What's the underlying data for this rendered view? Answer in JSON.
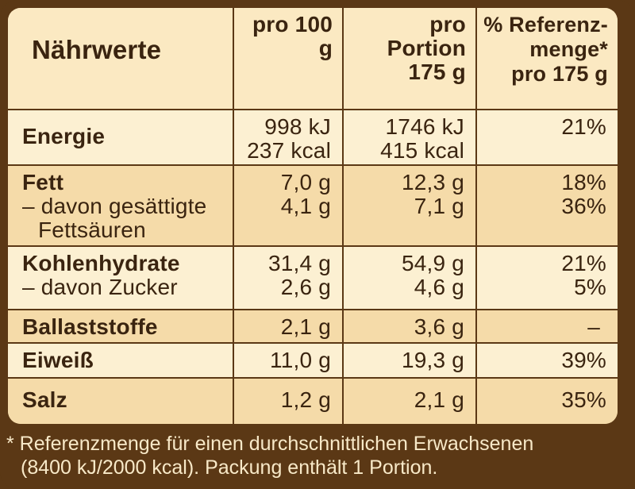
{
  "header": {
    "col_name": "Nährwerte",
    "col_100g": "pro 100 g",
    "col_portion_line1": "pro Portion",
    "col_portion_line2": "175 g",
    "col_ref_line1": "% Referenz-",
    "col_ref_line2": "menge*",
    "col_ref_line3": "pro 175 g"
  },
  "rows": [
    {
      "name": "Energie",
      "v100": [
        "998 kJ",
        "237 kcal"
      ],
      "vportion": [
        "1746 kJ",
        "415 kcal"
      ],
      "ref": [
        "21%"
      ]
    },
    {
      "name": "Fett",
      "sub": "– davon gesättigte",
      "sub2": "Fettsäuren",
      "v100": [
        "7,0 g",
        "4,1 g"
      ],
      "vportion": [
        "12,3 g",
        "7,1 g"
      ],
      "ref": [
        "18%",
        "36%"
      ]
    },
    {
      "name": "Kohlenhydrate",
      "sub": "– davon Zucker",
      "v100": [
        "31,4 g",
        "2,6 g"
      ],
      "vportion": [
        "54,9 g",
        "4,6 g"
      ],
      "ref": [
        "21%",
        "5%"
      ]
    },
    {
      "name": "Ballaststoffe",
      "v100": [
        "2,1 g"
      ],
      "vportion": [
        "3,6 g"
      ],
      "ref": [
        "–"
      ]
    },
    {
      "name": "Eiweiß",
      "v100": [
        "11,0 g"
      ],
      "vportion": [
        "19,3 g"
      ],
      "ref": [
        "39%"
      ]
    },
    {
      "name": "Salz",
      "v100": [
        "1,2 g"
      ],
      "vportion": [
        "2,1 g"
      ],
      "ref": [
        "35%"
      ]
    }
  ],
  "footnote": {
    "line1": "* Referenzmenge für einen durchschnittlichen Erwachsenen",
    "line2": "(8400 kJ/2000 kcal). Packung enthält 1 Portion."
  },
  "colors": {
    "frame": "#5b3815",
    "table_light": "#fcf0d2",
    "table_dark": "#f5dba9",
    "text": "#3a2410"
  }
}
